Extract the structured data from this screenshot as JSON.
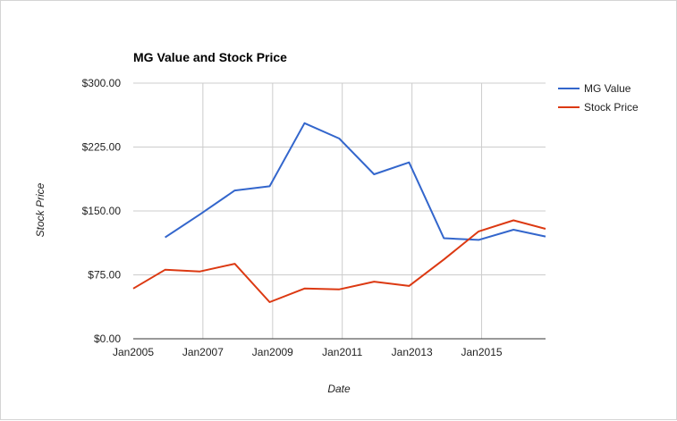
{
  "chart_data": {
    "type": "line",
    "title": "MG Value and Stock Price",
    "xlabel": "Date",
    "ylabel": "Stock Price",
    "x_range": [
      "2005-01-01",
      "2016-11-01"
    ],
    "ylim": [
      0,
      300
    ],
    "x_ticks": [
      {
        "date": "2005-01-01",
        "label": "Jan2005"
      },
      {
        "date": "2007-01-01",
        "label": "Jan2007"
      },
      {
        "date": "2009-01-01",
        "label": "Jan2009"
      },
      {
        "date": "2011-01-01",
        "label": "Jan2011"
      },
      {
        "date": "2013-01-01",
        "label": "Jan2013"
      },
      {
        "date": "2015-01-01",
        "label": "Jan2015"
      }
    ],
    "y_ticks": [
      {
        "value": 0,
        "label": "$0.00"
      },
      {
        "value": 75,
        "label": "$75.00"
      },
      {
        "value": 150,
        "label": "$150.00"
      },
      {
        "value": 225,
        "label": "$225.00"
      },
      {
        "value": 300,
        "label": "$300.00"
      }
    ],
    "grid": true,
    "legend_position": "right",
    "series": [
      {
        "name": "MG Value",
        "color": "#3366cc",
        "points": [
          {
            "x": "2005-12-01",
            "y": 119
          },
          {
            "x": "2006-12-01",
            "y": 146
          },
          {
            "x": "2007-12-01",
            "y": 174
          },
          {
            "x": "2008-12-01",
            "y": 179
          },
          {
            "x": "2009-12-01",
            "y": 253
          },
          {
            "x": "2010-12-01",
            "y": 235
          },
          {
            "x": "2011-12-01",
            "y": 193
          },
          {
            "x": "2012-12-01",
            "y": 207
          },
          {
            "x": "2013-12-01",
            "y": 118
          },
          {
            "x": "2014-12-01",
            "y": 116
          },
          {
            "x": "2015-12-01",
            "y": 128
          },
          {
            "x": "2016-11-01",
            "y": 120
          }
        ]
      },
      {
        "name": "Stock Price",
        "color": "#dc3912",
        "points": [
          {
            "x": "2005-01-01",
            "y": 59
          },
          {
            "x": "2005-12-01",
            "y": 81
          },
          {
            "x": "2006-12-01",
            "y": 79
          },
          {
            "x": "2007-12-01",
            "y": 88
          },
          {
            "x": "2008-12-01",
            "y": 43
          },
          {
            "x": "2009-12-01",
            "y": 59
          },
          {
            "x": "2010-12-01",
            "y": 58
          },
          {
            "x": "2011-12-01",
            "y": 67
          },
          {
            "x": "2012-12-01",
            "y": 62
          },
          {
            "x": "2013-12-01",
            "y": 93
          },
          {
            "x": "2014-12-01",
            "y": 126
          },
          {
            "x": "2015-12-01",
            "y": 139
          },
          {
            "x": "2016-11-01",
            "y": 129
          }
        ]
      }
    ]
  }
}
